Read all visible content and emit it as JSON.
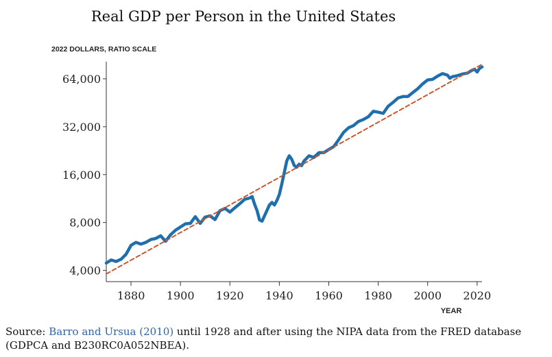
{
  "chart_data": {
    "type": "line",
    "title": "Real GDP per Person in the United States",
    "ylabel": "2022 DOLLARS, RATIO SCALE",
    "xlabel": "YEAR",
    "yscale": "log",
    "xlim": [
      1870,
      2022
    ],
    "ylim": [
      3400,
      82000
    ],
    "yticks": [
      4000,
      8000,
      16000,
      32000,
      64000
    ],
    "ytick_labels": [
      "4,000",
      "8,000",
      "16,000",
      "32,000",
      "64,000"
    ],
    "xticks": [
      1880,
      1900,
      1920,
      1940,
      1960,
      1980,
      2000,
      2020
    ],
    "xtick_labels": [
      "1880",
      "1900",
      "1920",
      "1940",
      "1960",
      "1980",
      "2000",
      "2020"
    ],
    "grid": false,
    "series": [
      {
        "style": "solid",
        "color": "#1f6fad",
        "x": [
          1870,
          1872,
          1874,
          1876,
          1878,
          1880,
          1882,
          1884,
          1886,
          1888,
          1890,
          1892,
          1894,
          1896,
          1898,
          1900,
          1902,
          1904,
          1906,
          1908,
          1910,
          1912,
          1914,
          1916,
          1918,
          1920,
          1922,
          1924,
          1926,
          1928,
          1929,
          1930,
          1931,
          1932,
          1933,
          1934,
          1936,
          1937,
          1938,
          1939,
          1940,
          1941,
          1942,
          1943,
          1944,
          1945,
          1946,
          1947,
          1948,
          1949,
          1950,
          1952,
          1954,
          1956,
          1958,
          1960,
          1962,
          1964,
          1966,
          1968,
          1970,
          1972,
          1974,
          1976,
          1978,
          1980,
          1982,
          1984,
          1986,
          1988,
          1990,
          1992,
          1994,
          1996,
          1998,
          2000,
          2002,
          2004,
          2006,
          2008,
          2009,
          2010,
          2012,
          2014,
          2016,
          2018,
          2019,
          2020,
          2021,
          2022
        ],
        "y": [
          4450,
          4650,
          4550,
          4700,
          5050,
          5750,
          6000,
          5850,
          6000,
          6250,
          6350,
          6600,
          6100,
          6700,
          7150,
          7500,
          7850,
          7900,
          8700,
          7900,
          8650,
          8800,
          8350,
          9500,
          9800,
          9300,
          9900,
          10500,
          11200,
          11400,
          11650,
          10400,
          9500,
          8300,
          8150,
          8800,
          10300,
          10700,
          10300,
          11000,
          12000,
          14000,
          16500,
          19500,
          21000,
          20000,
          18300,
          17800,
          18600,
          18200,
          19500,
          21000,
          20500,
          22000,
          22000,
          23000,
          24000,
          26500,
          29500,
          31500,
          32500,
          34500,
          35500,
          37000,
          40000,
          39500,
          38800,
          43000,
          45500,
          48500,
          49500,
          49500,
          52500,
          55500,
          59500,
          63000,
          63500,
          66500,
          69000,
          67500,
          64500,
          66000,
          67000,
          68500,
          69500,
          72500,
          73500,
          70500,
          74500,
          76000
        ]
      },
      {
        "style": "dashed",
        "color": "#c8572f",
        "x": [
          1870,
          2022
        ],
        "y": [
          3800,
          79000
        ]
      }
    ]
  },
  "source": {
    "prefix": "Source: ",
    "link_text": "Barro and Ursua (2010)",
    "rest": " until 1928 and after using the NIPA data from the FRED database (GDPCA and B230RC0A052NBEA)."
  }
}
